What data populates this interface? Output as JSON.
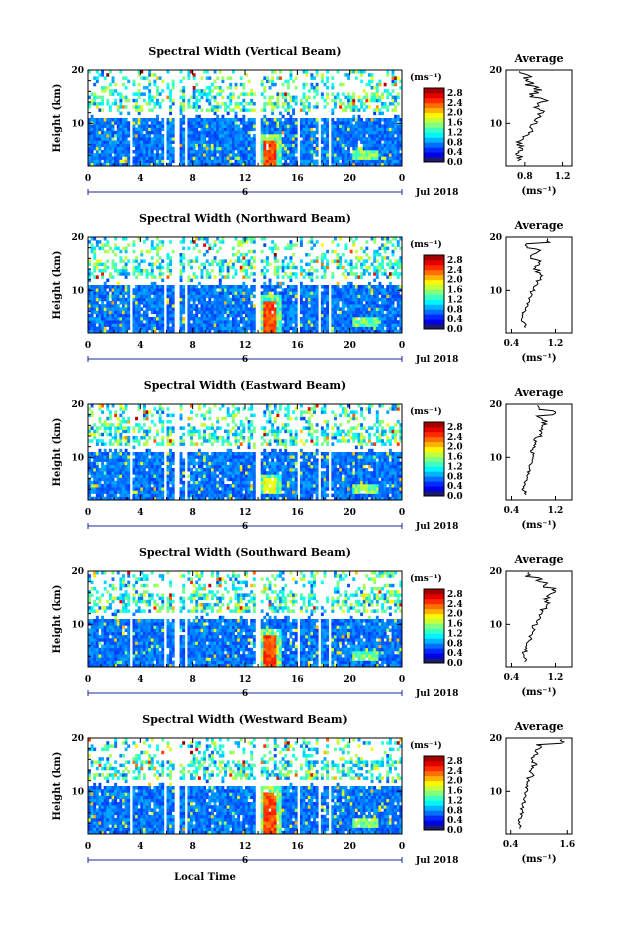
{
  "figure": {
    "date_label": "Jul 2018",
    "day_label": "6",
    "shared_xlabel": "Local Time"
  },
  "chart_data": [
    {
      "type": "heatmap",
      "title": "Spectral Width (Vertical Beam)",
      "xlabel": "",
      "ylabel": "Height (km)",
      "x_ticks": [
        "0",
        "4",
        "8",
        "12",
        "16",
        "20",
        "0"
      ],
      "xlim": [
        0,
        24
      ],
      "y_ticks": [
        "20",
        "10"
      ],
      "ylim": [
        2,
        20
      ],
      "colorbar": {
        "unit": "(ms⁻¹)",
        "ticks": [
          "2.8",
          "2.4",
          "2.0",
          "1.6",
          "1.2",
          "0.8",
          "0.4",
          "0.0"
        ],
        "range": [
          0,
          3.0
        ]
      },
      "data_gaps_hours": [
        [
          3.2,
          3.5
        ],
        [
          5.8,
          6.1
        ],
        [
          6.6,
          7.0
        ],
        [
          7.4,
          7.6
        ],
        [
          12.8,
          13.2
        ],
        [
          15.9,
          16.2
        ],
        [
          17.6,
          17.8
        ],
        [
          18.4,
          18.6
        ]
      ],
      "features": [
        {
          "label": "",
          "x_hours": 13.8,
          "y_km": [
            2,
            7
          ],
          "value": 2.6
        }
      ],
      "average_profile": {
        "title": "Average",
        "xlabel": "(ms⁻¹)",
        "x_ticks": [
          "0.8",
          "1.2"
        ],
        "xlim": [
          0.6,
          1.3
        ],
        "y_ticks": [
          "20",
          "10"
        ],
        "ylim": [
          2,
          20
        ],
        "height_km": [
          3,
          4,
          5,
          6,
          7,
          8,
          9,
          10,
          11,
          12,
          13,
          14,
          15,
          16,
          17,
          18,
          19
        ],
        "width_ms": [
          0.75,
          0.72,
          0.76,
          0.74,
          0.8,
          0.86,
          0.88,
          0.92,
          0.95,
          0.97,
          0.92,
          1.0,
          0.9,
          0.95,
          0.86,
          0.84,
          0.8
        ]
      }
    },
    {
      "type": "heatmap",
      "title": "Spectral Width (Northward Beam)",
      "xlabel": "",
      "ylabel": "Height (km)",
      "x_ticks": [
        "0",
        "4",
        "8",
        "12",
        "16",
        "20",
        "0"
      ],
      "xlim": [
        0,
        24
      ],
      "y_ticks": [
        "20",
        "10"
      ],
      "ylim": [
        2,
        20
      ],
      "colorbar": {
        "unit": "(ms⁻¹)",
        "ticks": [
          "2.8",
          "2.4",
          "2.0",
          "1.6",
          "1.2",
          "0.8",
          "0.4",
          "0.0"
        ],
        "range": [
          0,
          3.0
        ]
      },
      "data_gaps_hours": [
        [
          3.2,
          3.5
        ],
        [
          5.8,
          6.1
        ],
        [
          6.6,
          7.0
        ],
        [
          7.4,
          7.6
        ],
        [
          12.8,
          13.2
        ],
        [
          15.9,
          16.2
        ],
        [
          17.6,
          17.8
        ],
        [
          18.4,
          18.6
        ]
      ],
      "features": [
        {
          "label": "",
          "x_hours": 13.8,
          "y_km": [
            2,
            8
          ],
          "value": 2.6
        }
      ],
      "average_profile": {
        "title": "Average",
        "xlabel": "(ms⁻¹)",
        "x_ticks": [
          "0.4",
          "1.2"
        ],
        "xlim": [
          0.3,
          1.5
        ],
        "y_ticks": [
          "20",
          "10"
        ],
        "ylim": [
          2,
          20
        ],
        "height_km": [
          3,
          4,
          5,
          6,
          7,
          8,
          9,
          10,
          11,
          12,
          13,
          14,
          15,
          16,
          17,
          18,
          19
        ],
        "width_ms": [
          0.65,
          0.6,
          0.62,
          0.66,
          0.7,
          0.72,
          0.76,
          0.8,
          0.88,
          0.95,
          0.9,
          0.85,
          0.92,
          0.8,
          0.9,
          0.7,
          1.1
        ]
      }
    },
    {
      "type": "heatmap",
      "title": "Spectral Width (Eastward Beam)",
      "xlabel": "",
      "ylabel": "Height (km)",
      "x_ticks": [
        "0",
        "4",
        "8",
        "12",
        "16",
        "20",
        "0"
      ],
      "xlim": [
        0,
        24
      ],
      "y_ticks": [
        "20",
        "10"
      ],
      "ylim": [
        2,
        20
      ],
      "colorbar": {
        "unit": "(ms⁻¹)",
        "ticks": [
          "2.8",
          "2.4",
          "2.0",
          "1.6",
          "1.2",
          "0.8",
          "0.4",
          "0.0"
        ],
        "range": [
          0,
          3.0
        ]
      },
      "data_gaps_hours": [
        [
          3.2,
          3.5
        ],
        [
          5.8,
          6.1
        ],
        [
          6.6,
          7.0
        ],
        [
          7.4,
          7.6
        ],
        [
          12.8,
          13.2
        ],
        [
          15.9,
          16.2
        ],
        [
          17.6,
          17.8
        ],
        [
          18.4,
          18.6
        ]
      ],
      "features": [
        {
          "label": "",
          "x_hours": 13.8,
          "y_km": [
            3,
            6
          ],
          "value": 2.0
        }
      ],
      "average_profile": {
        "title": "Average",
        "xlabel": "(ms⁻¹)",
        "x_ticks": [
          "0.4",
          "1.2"
        ],
        "xlim": [
          0.3,
          1.5
        ],
        "y_ticks": [
          "20",
          "10"
        ],
        "ylim": [
          2,
          20
        ],
        "height_km": [
          3,
          4,
          5,
          6,
          7,
          8,
          9,
          10,
          11,
          12,
          13,
          14,
          15,
          16,
          17,
          18,
          19
        ],
        "width_ms": [
          0.65,
          0.62,
          0.66,
          0.7,
          0.72,
          0.74,
          0.78,
          0.8,
          0.76,
          0.84,
          0.86,
          0.9,
          0.95,
          1.0,
          0.9,
          1.2,
          0.9
        ]
      }
    },
    {
      "type": "heatmap",
      "title": "Spectral Width (Southward Beam)",
      "xlabel": "",
      "ylabel": "Height (km)",
      "x_ticks": [
        "0",
        "4",
        "8",
        "12",
        "16",
        "20",
        "0"
      ],
      "xlim": [
        0,
        24
      ],
      "y_ticks": [
        "20",
        "10"
      ],
      "ylim": [
        2,
        20
      ],
      "colorbar": {
        "unit": "(ms⁻¹)",
        "ticks": [
          "2.8",
          "2.4",
          "2.0",
          "1.6",
          "1.2",
          "0.8",
          "0.4",
          "0.0"
        ],
        "range": [
          0,
          3.0
        ]
      },
      "data_gaps_hours": [
        [
          3.2,
          3.5
        ],
        [
          5.8,
          6.1
        ],
        [
          6.6,
          7.0
        ],
        [
          7.4,
          7.6
        ],
        [
          12.8,
          13.2
        ],
        [
          15.9,
          16.2
        ],
        [
          17.6,
          17.8
        ],
        [
          18.4,
          18.6
        ]
      ],
      "features": [
        {
          "label": "",
          "x_hours": 13.8,
          "y_km": [
            2,
            8
          ],
          "value": 2.6
        }
      ],
      "average_profile": {
        "title": "Average",
        "xlabel": "(ms⁻¹)",
        "x_ticks": [
          "0.4",
          "1.2"
        ],
        "xlim": [
          0.3,
          1.5
        ],
        "y_ticks": [
          "20",
          "10"
        ],
        "ylim": [
          2,
          20
        ],
        "height_km": [
          3,
          4,
          5,
          6,
          7,
          8,
          9,
          10,
          11,
          12,
          13,
          14,
          15,
          16,
          17,
          18,
          19
        ],
        "width_ms": [
          0.65,
          0.6,
          0.66,
          0.7,
          0.74,
          0.78,
          0.8,
          0.86,
          0.9,
          0.95,
          1.0,
          1.05,
          1.1,
          1.2,
          1.0,
          0.9,
          0.7
        ]
      }
    },
    {
      "type": "heatmap",
      "title": "Spectral Width (Westward Beam)",
      "xlabel": "",
      "ylabel": "Height (km)",
      "x_ticks": [
        "0",
        "4",
        "8",
        "12",
        "16",
        "20",
        "0"
      ],
      "xlim": [
        0,
        24
      ],
      "y_ticks": [
        "20",
        "10"
      ],
      "ylim": [
        2,
        20
      ],
      "colorbar": {
        "unit": "(ms⁻¹)",
        "ticks": [
          "2.8",
          "2.4",
          "2.0",
          "1.6",
          "1.2",
          "0.8",
          "0.4",
          "0.0"
        ],
        "range": [
          0,
          3.0
        ]
      },
      "data_gaps_hours": [
        [
          3.2,
          3.5
        ],
        [
          5.8,
          6.1
        ],
        [
          6.6,
          7.0
        ],
        [
          7.4,
          7.6
        ],
        [
          12.8,
          13.2
        ],
        [
          15.9,
          16.2
        ],
        [
          17.6,
          17.8
        ],
        [
          18.4,
          18.6
        ]
      ],
      "features": [
        {
          "label": "",
          "x_hours": 13.8,
          "y_km": [
            2,
            10
          ],
          "value": 2.6
        }
      ],
      "average_profile": {
        "title": "Average",
        "xlabel": "(ms⁻¹)",
        "x_ticks": [
          "0.4",
          "1.6"
        ],
        "xlim": [
          0.3,
          1.7
        ],
        "y_ticks": [
          "20",
          "10"
        ],
        "ylim": [
          2,
          20
        ],
        "height_km": [
          3,
          4,
          5,
          6,
          7,
          8,
          9,
          10,
          11,
          12,
          13,
          14,
          15,
          16,
          17,
          18,
          19
        ],
        "width_ms": [
          0.6,
          0.58,
          0.62,
          0.64,
          0.66,
          0.7,
          0.72,
          0.74,
          0.76,
          0.8,
          0.84,
          0.86,
          0.9,
          0.85,
          0.95,
          1.0,
          1.5
        ]
      }
    }
  ]
}
